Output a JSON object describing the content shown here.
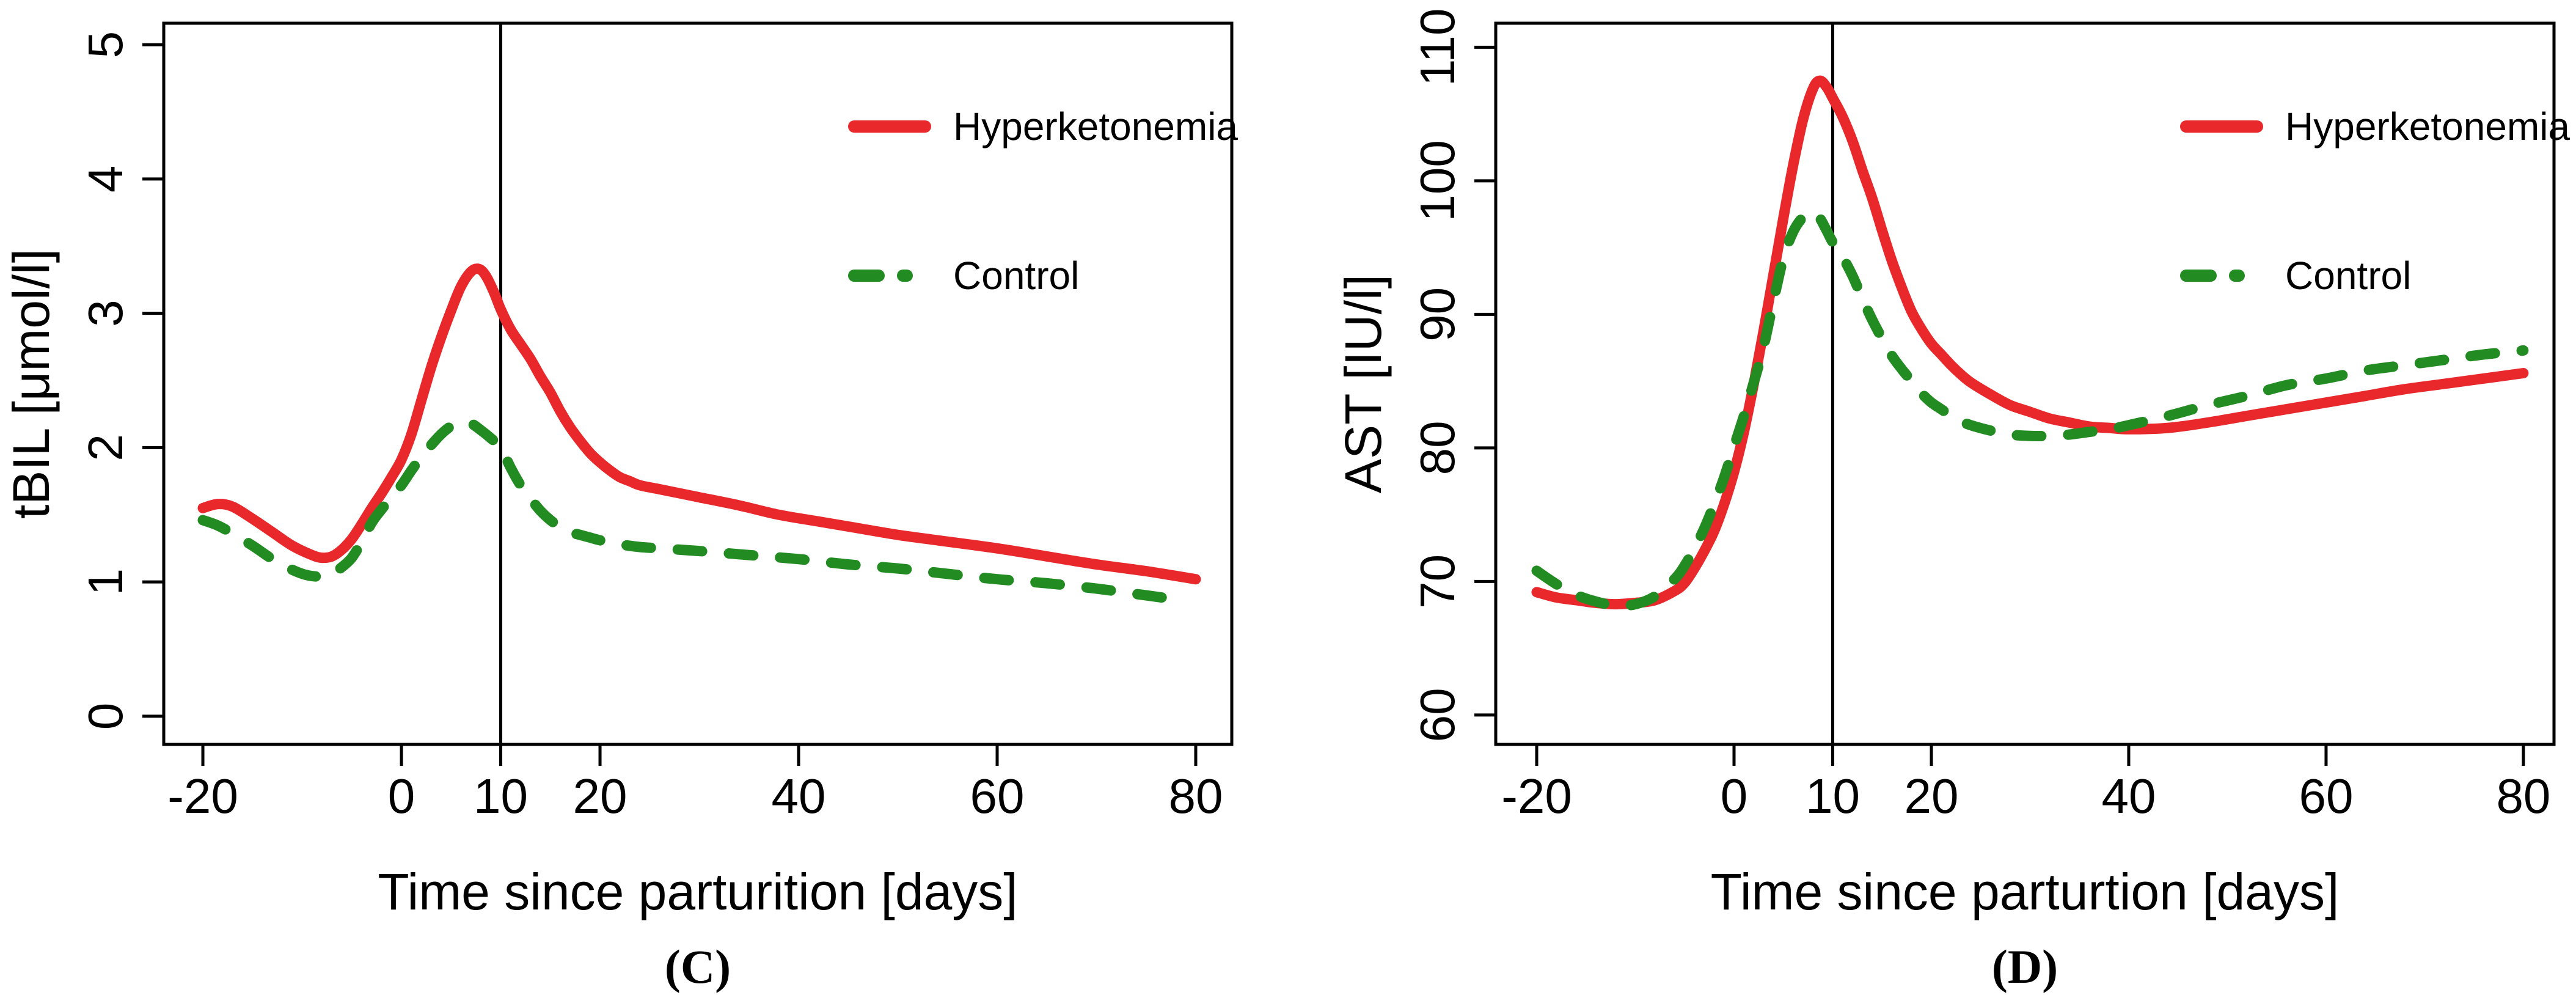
{
  "figure": {
    "background": "#ffffff",
    "description": "Two-panel line figure: smoothed blood parameter curves around parturition for hyperketonemia vs control cows"
  },
  "colors": {
    "hyperketonemia": "#E8282B",
    "control": "#228B22",
    "axis": "#000000",
    "reference_line": "#000000"
  },
  "chart_data": [
    {
      "type": "line",
      "panel_tag": "(C)",
      "xlabel": "Time since parturition [days]",
      "ylabel": "tBIL [μmol/l]",
      "xlim": [
        -23.94,
        83.63
      ],
      "ylim": [
        -0.21,
        5.16
      ],
      "xticks": [
        -20,
        0,
        10,
        20,
        40,
        60,
        80
      ],
      "yticks": [
        0,
        1,
        2,
        3,
        4,
        5
      ],
      "vline_x": 10,
      "grid": false,
      "legend_position": "top-right",
      "legend": [
        {
          "label": "Hyperketonemia",
          "style": "solid",
          "color": "#E8282B"
        },
        {
          "label": "Control",
          "style": "dashed",
          "color": "#228B22"
        }
      ],
      "series": [
        {
          "name": "Hyperketonemia",
          "color": "#E8282B",
          "style": "solid",
          "points": [
            [
              -20,
              1.55
            ],
            [
              -18.5,
              1.58
            ],
            [
              -17,
              1.56
            ],
            [
              -15,
              1.47
            ],
            [
              -13,
              1.37
            ],
            [
              -11,
              1.27
            ],
            [
              -9,
              1.2
            ],
            [
              -8,
              1.18
            ],
            [
              -7,
              1.19
            ],
            [
              -6,
              1.24
            ],
            [
              -5,
              1.32
            ],
            [
              -4,
              1.43
            ],
            [
              -3,
              1.55
            ],
            [
              -2,
              1.66
            ],
            [
              -1,
              1.78
            ],
            [
              0,
              1.91
            ],
            [
              1,
              2.1
            ],
            [
              2,
              2.35
            ],
            [
              3,
              2.6
            ],
            [
              4,
              2.82
            ],
            [
              5,
              3.02
            ],
            [
              6,
              3.2
            ],
            [
              7,
              3.31
            ],
            [
              7.8,
              3.33
            ],
            [
              8.5,
              3.28
            ],
            [
              9.3,
              3.16
            ],
            [
              10,
              3.03
            ],
            [
              11,
              2.88
            ],
            [
              12,
              2.77
            ],
            [
              13,
              2.66
            ],
            [
              14,
              2.53
            ],
            [
              15,
              2.41
            ],
            [
              16,
              2.27
            ],
            [
              17,
              2.15
            ],
            [
              18,
              2.05
            ],
            [
              19,
              1.96
            ],
            [
              20,
              1.89
            ],
            [
              21,
              1.83
            ],
            [
              22,
              1.78
            ],
            [
              23,
              1.75
            ],
            [
              24,
              1.72
            ],
            [
              26,
              1.69
            ],
            [
              28,
              1.66
            ],
            [
              30,
              1.63
            ],
            [
              34,
              1.57
            ],
            [
              38,
              1.5
            ],
            [
              42,
              1.45
            ],
            [
              46,
              1.4
            ],
            [
              50,
              1.35
            ],
            [
              55,
              1.3
            ],
            [
              60,
              1.25
            ],
            [
              65,
              1.19
            ],
            [
              70,
              1.13
            ],
            [
              75,
              1.08
            ],
            [
              80,
              1.02
            ]
          ]
        },
        {
          "name": "Control",
          "color": "#228B22",
          "style": "dashed",
          "points": [
            [
              -20,
              1.46
            ],
            [
              -18.5,
              1.42
            ],
            [
              -17,
              1.36
            ],
            [
              -15,
              1.27
            ],
            [
              -13,
              1.17
            ],
            [
              -11,
              1.09
            ],
            [
              -9.5,
              1.05
            ],
            [
              -8,
              1.04
            ],
            [
              -7,
              1.06
            ],
            [
              -6,
              1.11
            ],
            [
              -5,
              1.18
            ],
            [
              -4,
              1.3
            ],
            [
              -3,
              1.44
            ],
            [
              -2,
              1.54
            ],
            [
              -1,
              1.63
            ],
            [
              0,
              1.72
            ],
            [
              1,
              1.83
            ],
            [
              2,
              1.93
            ],
            [
              3,
              2.02
            ],
            [
              4,
              2.1
            ],
            [
              5,
              2.16
            ],
            [
              6,
              2.19
            ],
            [
              7,
              2.18
            ],
            [
              8,
              2.13
            ],
            [
              9,
              2.07
            ],
            [
              10,
              2.0
            ],
            [
              11,
              1.85
            ],
            [
              12,
              1.72
            ],
            [
              13,
              1.62
            ],
            [
              14,
              1.53
            ],
            [
              15,
              1.46
            ],
            [
              16,
              1.41
            ],
            [
              17,
              1.37
            ],
            [
              18,
              1.35
            ],
            [
              19,
              1.33
            ],
            [
              20,
              1.31
            ],
            [
              22,
              1.28
            ],
            [
              24,
              1.26
            ],
            [
              26,
              1.25
            ],
            [
              30,
              1.23
            ],
            [
              35,
              1.2
            ],
            [
              40,
              1.17
            ],
            [
              45,
              1.13
            ],
            [
              50,
              1.1
            ],
            [
              55,
              1.06
            ],
            [
              60,
              1.02
            ],
            [
              65,
              0.99
            ],
            [
              70,
              0.95
            ],
            [
              75,
              0.9
            ],
            [
              79,
              0.86
            ]
          ]
        }
      ]
    },
    {
      "type": "line",
      "panel_tag": "(D)",
      "xlabel": "Time since parturtion [days]",
      "ylabel": "AST [IU/l]",
      "xlim": [
        -24.15,
        83.1
      ],
      "ylim": [
        57.8,
        111.8
      ],
      "xticks": [
        -20,
        0,
        10,
        20,
        40,
        60,
        80
      ],
      "yticks": [
        60,
        70,
        80,
        90,
        100,
        110
      ],
      "vline_x": 10,
      "grid": false,
      "legend_position": "top-right",
      "legend": [
        {
          "label": "Hyperketonemia",
          "style": "solid",
          "color": "#E8282B"
        },
        {
          "label": "Control",
          "style": "dashed",
          "color": "#228B22"
        }
      ],
      "series": [
        {
          "name": "Hyperketonemia",
          "color": "#E8282B",
          "style": "solid",
          "points": [
            [
              -20,
              69.2
            ],
            [
              -18,
              68.8
            ],
            [
              -16,
              68.6
            ],
            [
              -14,
              68.4
            ],
            [
              -12,
              68.3
            ],
            [
              -10,
              68.4
            ],
            [
              -8,
              68.6
            ],
            [
              -6,
              69.3
            ],
            [
              -5,
              69.9
            ],
            [
              -4,
              71.0
            ],
            [
              -3,
              72.3
            ],
            [
              -2,
              73.8
            ],
            [
              -1,
              75.8
            ],
            [
              0,
              78.2
            ],
            [
              1,
              81.2
            ],
            [
              2,
              84.8
            ],
            [
              3,
              88.8
            ],
            [
              4,
              93.0
            ],
            [
              5,
              97.2
            ],
            [
              6,
              101.2
            ],
            [
              7,
              104.6
            ],
            [
              8,
              106.9
            ],
            [
              8.7,
              107.5
            ],
            [
              9.4,
              107.0
            ],
            [
              10,
              106.2
            ],
            [
              11,
              104.8
            ],
            [
              12,
              103.0
            ],
            [
              13,
              100.8
            ],
            [
              14,
              98.7
            ],
            [
              15,
              96.3
            ],
            [
              16,
              94.0
            ],
            [
              17,
              92.0
            ],
            [
              18,
              90.2
            ],
            [
              19,
              88.9
            ],
            [
              20,
              87.8
            ],
            [
              21,
              87.0
            ],
            [
              22,
              86.2
            ],
            [
              23,
              85.5
            ],
            [
              24,
              84.9
            ],
            [
              26,
              84.0
            ],
            [
              28,
              83.2
            ],
            [
              30,
              82.7
            ],
            [
              32,
              82.2
            ],
            [
              34,
              81.9
            ],
            [
              36,
              81.6
            ],
            [
              38,
              81.5
            ],
            [
              40,
              81.4
            ],
            [
              44,
              81.5
            ],
            [
              48,
              81.9
            ],
            [
              52,
              82.4
            ],
            [
              56,
              82.9
            ],
            [
              60,
              83.4
            ],
            [
              64,
              83.9
            ],
            [
              68,
              84.4
            ],
            [
              72,
              84.8
            ],
            [
              76,
              85.2
            ],
            [
              80,
              85.6
            ]
          ]
        },
        {
          "name": "Control",
          "color": "#228B22",
          "style": "dashed",
          "points": [
            [
              -20,
              70.8
            ],
            [
              -18,
              69.8
            ],
            [
              -16,
              69.0
            ],
            [
              -14,
              68.5
            ],
            [
              -12,
              68.2
            ],
            [
              -10,
              68.3
            ],
            [
              -8,
              68.9
            ],
            [
              -6,
              70.2
            ],
            [
              -5,
              71.2
            ],
            [
              -4,
              72.5
            ],
            [
              -3,
              74.0
            ],
            [
              -2,
              75.8
            ],
            [
              -1,
              77.8
            ],
            [
              0,
              80.1
            ],
            [
              1,
              82.4
            ],
            [
              2,
              84.9
            ],
            [
              3,
              87.6
            ],
            [
              4,
              91.0
            ],
            [
              5,
              94.2
            ],
            [
              6,
              96.2
            ],
            [
              7,
              97.3
            ],
            [
              7.8,
              97.7
            ],
            [
              8.6,
              97.3
            ],
            [
              9.3,
              96.4
            ],
            [
              10,
              95.4
            ],
            [
              11,
              94.3
            ],
            [
              12,
              92.9
            ],
            [
              13,
              91.2
            ],
            [
              14,
              89.6
            ],
            [
              15,
              88.2
            ],
            [
              16,
              86.9
            ],
            [
              17,
              85.9
            ],
            [
              18,
              85.0
            ],
            [
              19,
              84.1
            ],
            [
              20,
              83.4
            ],
            [
              21,
              82.9
            ],
            [
              22,
              82.4
            ],
            [
              23,
              82.0
            ],
            [
              24,
              81.7
            ],
            [
              26,
              81.3
            ],
            [
              28,
              81.0
            ],
            [
              30,
              80.9
            ],
            [
              32,
              80.9
            ],
            [
              34,
              81.0
            ],
            [
              36,
              81.2
            ],
            [
              38,
              81.4
            ],
            [
              40,
              81.7
            ],
            [
              44,
              82.4
            ],
            [
              48,
              83.2
            ],
            [
              52,
              83.9
            ],
            [
              56,
              84.7
            ],
            [
              60,
              85.2
            ],
            [
              64,
              85.8
            ],
            [
              68,
              86.2
            ],
            [
              72,
              86.6
            ],
            [
              76,
              87.0
            ],
            [
              80,
              87.3
            ]
          ]
        }
      ]
    }
  ]
}
